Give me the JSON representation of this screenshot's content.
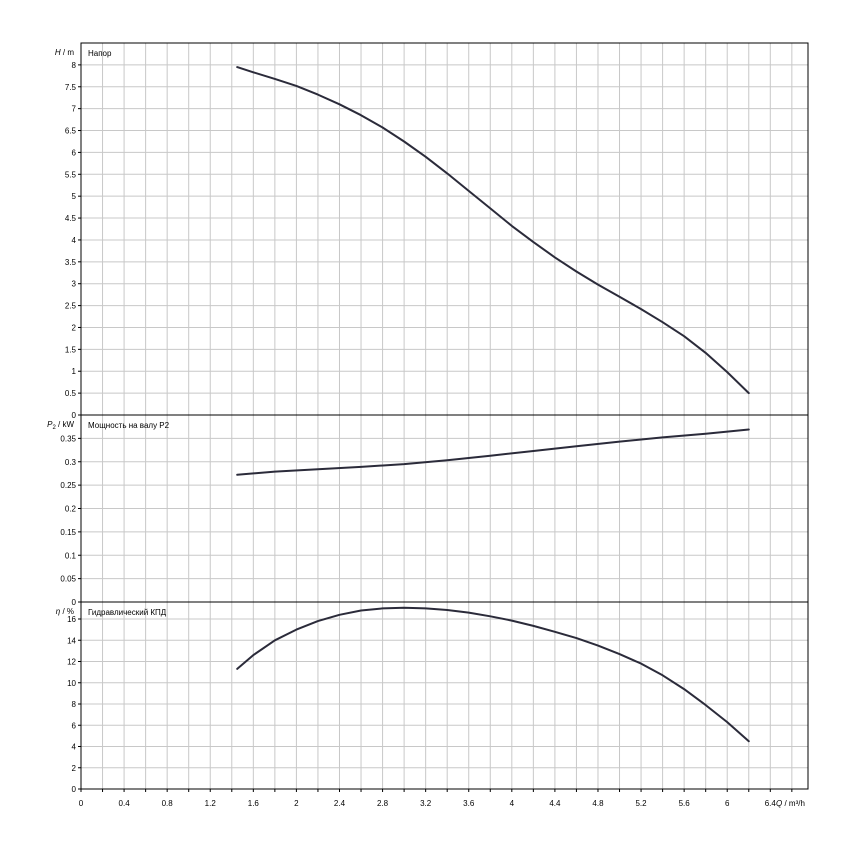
{
  "chart_data": [
    {
      "type": "line",
      "title": "Напор",
      "ylabel_symbol": "H",
      "ylabel_unit": "/ m",
      "ylim": [
        0,
        8.5
      ],
      "yticks": [
        0,
        0.5,
        1,
        1.5,
        2,
        2.5,
        3,
        3.5,
        4,
        4.5,
        5,
        5.5,
        6,
        6.5,
        7,
        7.5,
        8
      ],
      "ytick_labels": [
        "0",
        "0.5",
        "1",
        "1.5",
        "2",
        "2.5",
        "3",
        "3.5",
        "4",
        "4.5",
        "5",
        "5.5",
        "6",
        "6.5",
        "7",
        "7.5",
        "8"
      ],
      "grid": true,
      "series": [
        {
          "x": [
            1.45,
            1.6,
            1.8,
            2.0,
            2.2,
            2.4,
            2.6,
            2.8,
            3.0,
            3.2,
            3.4,
            3.6,
            3.8,
            4.0,
            4.2,
            4.4,
            4.6,
            4.8,
            5.0,
            5.2,
            5.4,
            5.6,
            5.8,
            6.0,
            6.2
          ],
          "y": [
            7.95,
            7.83,
            7.68,
            7.52,
            7.32,
            7.1,
            6.85,
            6.57,
            6.25,
            5.9,
            5.52,
            5.12,
            4.72,
            4.32,
            3.95,
            3.6,
            3.28,
            2.98,
            2.7,
            2.42,
            2.12,
            1.8,
            1.42,
            0.98,
            0.5
          ]
        }
      ]
    },
    {
      "type": "line",
      "title": "Мощность на валу P2",
      "ylabel_symbol": "P",
      "ylabel_sub": "2",
      "ylabel_unit": "/ kW",
      "ylim": [
        0,
        0.4
      ],
      "yticks": [
        0,
        0.05,
        0.1,
        0.15,
        0.2,
        0.25,
        0.3,
        0.35
      ],
      "ytick_labels": [
        "0",
        "0.05",
        "0.1",
        "0.15",
        "0.2",
        "0.25",
        "0.3",
        "0.35"
      ],
      "grid": true,
      "series": [
        {
          "x": [
            1.45,
            1.8,
            2.2,
            2.6,
            3.0,
            3.4,
            3.8,
            4.2,
            4.6,
            5.0,
            5.4,
            5.8,
            6.2
          ],
          "y": [
            0.272,
            0.279,
            0.284,
            0.289,
            0.295,
            0.303,
            0.313,
            0.323,
            0.333,
            0.343,
            0.352,
            0.36,
            0.369
          ]
        }
      ]
    },
    {
      "type": "line",
      "title": "Гидравлический КПД",
      "ylabel_symbol": "η",
      "ylabel_unit": "/ %",
      "ylim": [
        0,
        17.6
      ],
      "yticks": [
        0,
        2,
        4,
        6,
        8,
        10,
        12,
        14,
        16
      ],
      "ytick_labels": [
        "0",
        "2",
        "4",
        "6",
        "8",
        "10",
        "12",
        "14",
        "16"
      ],
      "grid": true,
      "series": [
        {
          "x": [
            1.45,
            1.6,
            1.8,
            2.0,
            2.2,
            2.4,
            2.6,
            2.8,
            3.0,
            3.2,
            3.4,
            3.6,
            3.8,
            4.0,
            4.2,
            4.4,
            4.6,
            4.8,
            5.0,
            5.2,
            5.4,
            5.6,
            5.8,
            6.0,
            6.2
          ],
          "y": [
            11.3,
            12.6,
            14.0,
            15.0,
            15.8,
            16.4,
            16.8,
            17.0,
            17.05,
            17.0,
            16.85,
            16.6,
            16.25,
            15.85,
            15.35,
            14.8,
            14.2,
            13.5,
            12.7,
            11.8,
            10.7,
            9.4,
            7.9,
            6.3,
            4.5
          ]
        }
      ]
    }
  ],
  "x_axis": {
    "xlabel_symbol": "Q",
    "xlabel_unit": "/ m³/h",
    "xlim": [
      0,
      6.75
    ],
    "xticks": [
      0,
      0.4,
      0.8,
      1.2,
      1.6,
      2,
      2.4,
      2.8,
      3.2,
      3.6,
      4,
      4.4,
      4.8,
      5.2,
      5.6,
      6,
      6.4
    ],
    "xtick_labels": [
      "0",
      "0.4",
      "0.8",
      "1.2",
      "1.6",
      "2",
      "2.4",
      "2.8",
      "3.2",
      "3.6",
      "4",
      "4.4",
      "4.8",
      "5.2",
      "5.6",
      "6",
      "6.4"
    ],
    "minor_step": 0.2
  }
}
